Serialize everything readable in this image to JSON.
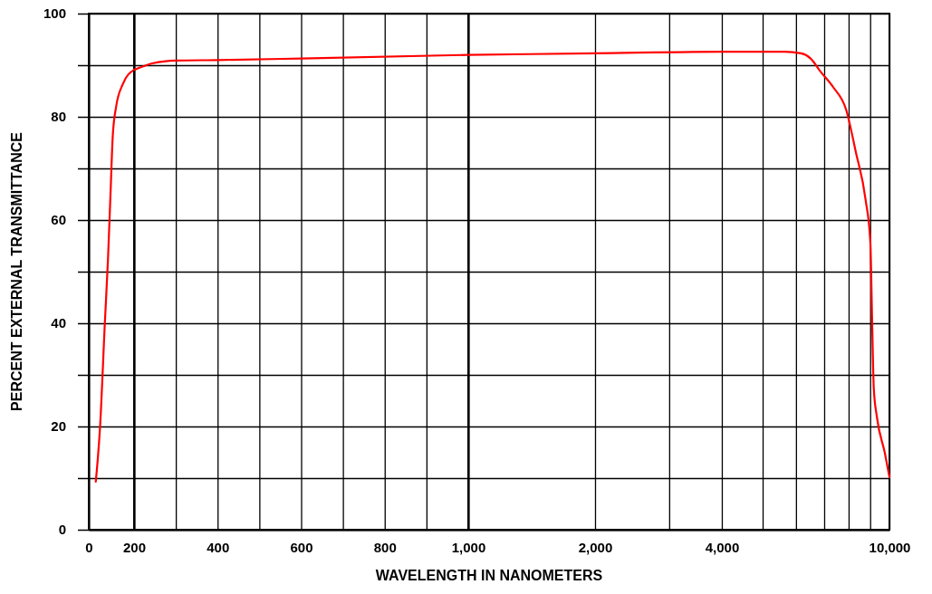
{
  "chart_data": [
    {
      "type": "line",
      "ylabel": "PERCENT EXTERNAL TRANSMITTANCE",
      "xlim": [
        0,
        200
      ],
      "ylim": [
        0,
        100
      ],
      "xticks": [
        0,
        200
      ],
      "yticks": [
        0,
        {
          "value": 10,
          "label": null
        },
        20,
        {
          "value": 30,
          "label": null
        },
        40,
        {
          "value": 50,
          "label": null
        },
        60,
        {
          "value": 70,
          "label": null
        },
        80,
        {
          "value": 90,
          "label": null
        },
        100
      ],
      "grid": true,
      "marker": "none",
      "line_style": "solid",
      "series": [
        {
          "color": "#ff0000",
          "x": [
            31,
            50,
            71,
            85,
            96,
            106,
            121,
            150,
            200
          ],
          "values": [
            9.3,
            20,
            40,
            52.5,
            65,
            76.3,
            82,
            86.3,
            89.1
          ]
        }
      ]
    },
    {
      "type": "line",
      "xlabel": "WAVELENGTH IN NANOMETERS",
      "xlim": [
        200,
        1000
      ],
      "ylim": [
        0,
        100
      ],
      "tick_labels": "x",
      "xticks": [
        {
          "value": 200,
          "label": null
        },
        {
          "value": 300,
          "label": null
        },
        400,
        {
          "value": 500,
          "label": null
        },
        600,
        {
          "value": 700,
          "label": null
        },
        800,
        {
          "value": 900,
          "label": null
        },
        {
          "value": 1000,
          "label": "1,000"
        }
      ],
      "yticks": [
        0,
        10,
        20,
        30,
        40,
        50,
        60,
        70,
        80,
        90,
        100
      ],
      "grid": true,
      "marker": "none",
      "line_style": "solid",
      "series": [
        {
          "color": "#ff0000",
          "x": [
            200,
            246,
            300,
            400,
            600,
            1000
          ],
          "values": [
            89.1,
            90.4,
            90.9,
            91,
            91.3,
            92
          ]
        }
      ]
    },
    {
      "type": "line",
      "log": "x",
      "xlim": [
        1000,
        10000
      ],
      "ylim": [
        0,
        100
      ],
      "tick_labels": "x",
      "xticks": [
        {
          "value": 1000,
          "label": null
        },
        {
          "value": 2000,
          "label": "2,000"
        },
        {
          "value": 3000,
          "label": null
        },
        {
          "value": 4000,
          "label": "4,000"
        },
        {
          "value": 5000,
          "label": null
        },
        {
          "value": 6000,
          "label": null
        },
        {
          "value": 7000,
          "label": null
        },
        {
          "value": 8000,
          "label": null
        },
        {
          "value": 9000,
          "label": null
        },
        {
          "value": 10000,
          "label": "10,000"
        }
      ],
      "yticks": [
        0,
        10,
        20,
        30,
        40,
        50,
        60,
        70,
        80,
        90,
        100
      ],
      "grid": true,
      "marker": "none",
      "line_style": "solid",
      "series": [
        {
          "color": "#ff0000",
          "x": [
            1000,
            2000,
            4000,
            5640,
            6166,
            6500,
            6855,
            7360,
            7890,
            8320,
            8780,
            9010,
            9100,
            9180,
            9340,
            9750,
            10000
          ],
          "values": [
            92,
            92.3,
            92.6,
            92.6,
            92.3,
            91.3,
            88.8,
            85.7,
            81.4,
            73.2,
            63.9,
            55.6,
            40,
            27.4,
            21.8,
            14.9,
            10.2
          ]
        }
      ]
    }
  ]
}
